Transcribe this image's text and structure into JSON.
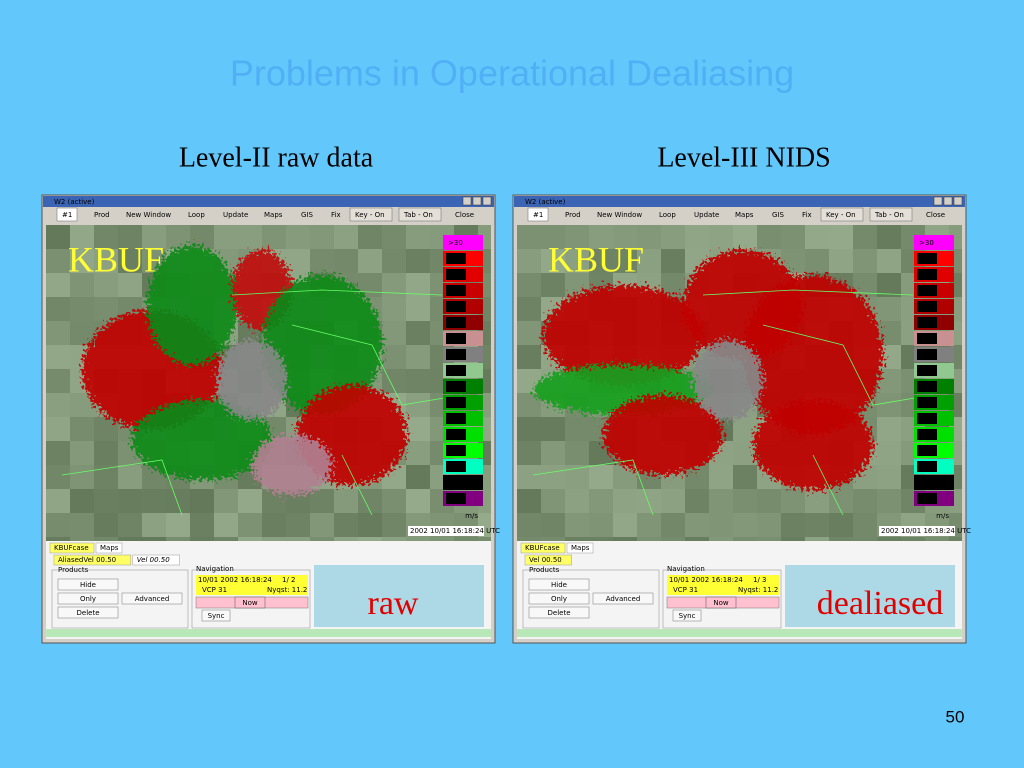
{
  "slide": {
    "title": "Problems in Operational Dealiasing",
    "page_number": "50"
  },
  "panels": [
    {
      "caption": "Level-II raw data",
      "window_title": "W2  (active)",
      "menu": [
        "#1",
        "Prod",
        "New Window",
        "Loop",
        "Update",
        "Maps",
        "GIS",
        "Fix",
        "Key - On",
        "Tab - On",
        "Close"
      ],
      "site_label": "KBUF",
      "legend": [
        {
          "label": ">30",
          "color": "#ff00ff"
        },
        {
          "label": "30.0",
          "color": "#ff0000"
        },
        {
          "label": "25.0",
          "color": "#e00000"
        },
        {
          "label": "20.0",
          "color": "#c80000"
        },
        {
          "label": "15.0",
          "color": "#b00000"
        },
        {
          "label": "10.0",
          "color": "#900000"
        },
        {
          "label": "5.0",
          "color": "#c89090"
        },
        {
          "label": "0",
          "color": "#808080"
        },
        {
          "label": "-5",
          "color": "#90c890"
        },
        {
          "label": "-10",
          "color": "#008000"
        },
        {
          "label": "-15",
          "color": "#00a000"
        },
        {
          "label": "-20",
          "color": "#00c000"
        },
        {
          "label": "-25",
          "color": "#00e000"
        },
        {
          "label": "-30",
          "color": "#00ff00"
        },
        {
          "label": "<-30",
          "color": "#00ffc0"
        },
        {
          "label": "MD",
          "color": "#000000"
        },
        {
          "label": "RF",
          "color": "#800080"
        }
      ],
      "legend_unit": "m/s",
      "timestamp": "2002  10/01  16:18:24  UTC",
      "tabs": [
        "KBUFcase",
        "Maps"
      ],
      "subtabs": [
        "AliasedVel 00.50",
        "Vel 00.50"
      ],
      "products": {
        "title": "Products",
        "buttons": [
          "Hide",
          "Only",
          "Delete",
          "Advanced"
        ]
      },
      "navigation": {
        "title": "Navigation",
        "datetime": "10/01 2002 16:18:24",
        "frame": "1/ 2",
        "vcp": "VCP 31",
        "nyquist": "Nyqst: 11.2",
        "now": "Now",
        "sync": "Sync"
      },
      "annotation": "raw"
    },
    {
      "caption": "Level-III  NIDS",
      "window_title": "W2  (active)",
      "menu": [
        "#1",
        "Prod",
        "New Window",
        "Loop",
        "Update",
        "Maps",
        "GIS",
        "Fix",
        "Key - On",
        "Tab - On",
        "Close"
      ],
      "site_label": "KBUF",
      "legend": [
        {
          "label": ">30",
          "color": "#ff00ff"
        },
        {
          "label": "30.0",
          "color": "#ff0000"
        },
        {
          "label": "25.0",
          "color": "#e00000"
        },
        {
          "label": "20.0",
          "color": "#c80000"
        },
        {
          "label": "15.0",
          "color": "#b00000"
        },
        {
          "label": "10.0",
          "color": "#900000"
        },
        {
          "label": "5.0",
          "color": "#c89090"
        },
        {
          "label": "0",
          "color": "#808080"
        },
        {
          "label": "-5",
          "color": "#90c890"
        },
        {
          "label": "-10",
          "color": "#008000"
        },
        {
          "label": "-15",
          "color": "#00a000"
        },
        {
          "label": "-20",
          "color": "#00c000"
        },
        {
          "label": "-25",
          "color": "#00e000"
        },
        {
          "label": "-30",
          "color": "#00ff00"
        },
        {
          "label": "<-30",
          "color": "#00ffc0"
        },
        {
          "label": "MD",
          "color": "#000000"
        },
        {
          "label": "RF",
          "color": "#800080"
        }
      ],
      "legend_unit": "m/s",
      "timestamp": "2002  10/01  16:18:24  UTC",
      "tabs": [
        "KBUFcase",
        "Maps"
      ],
      "subtabs": [
        "Vel 00.50"
      ],
      "products": {
        "title": "Products",
        "buttons": [
          "Hide",
          "Only",
          "Delete",
          "Advanced"
        ]
      },
      "navigation": {
        "title": "Navigation",
        "datetime": "10/01 2002 16:18:24",
        "frame": "1/ 3",
        "vcp": "VCP 31",
        "nyquist": "Nyqst: 11.2",
        "now": "Now",
        "sync": "Sync"
      },
      "annotation": "dealiased"
    }
  ]
}
